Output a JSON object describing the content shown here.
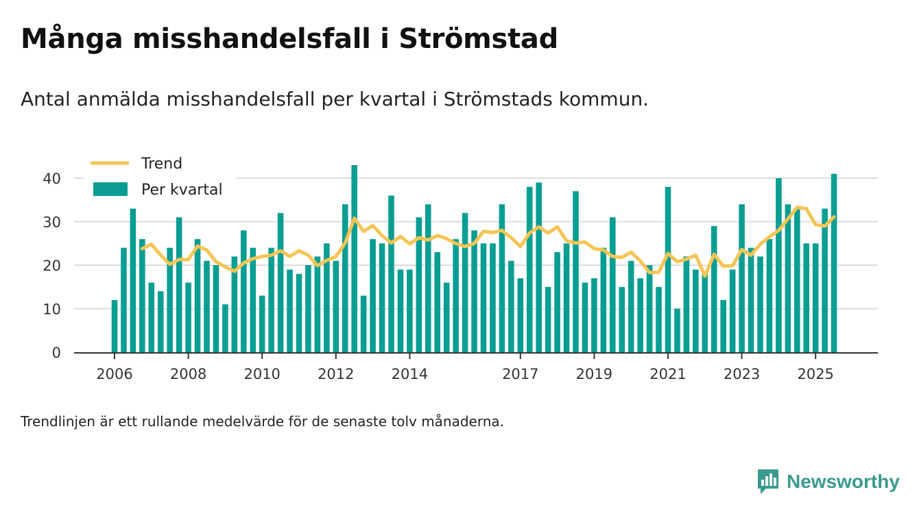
{
  "header": {
    "title": "Många misshandelsfall i Strömstad",
    "subtitle": "Antal anmälda misshandelsfall per kvartal i Strömstads kommun."
  },
  "footnote": "Trendlinjen är ett rullande medelvärde för de senaste tolv månaderna.",
  "brand": {
    "name": "Newsworthy",
    "icon": "newsworthy-logo-icon",
    "color": "#3a9a8e"
  },
  "chart_data": {
    "type": "bar",
    "title": "Många misshandelsfall i Strömstad",
    "xlabel": "",
    "ylabel": "",
    "ylim": [
      0,
      45
    ],
    "yticks": [
      0,
      10,
      20,
      30,
      40
    ],
    "grid": true,
    "legend_position": "top-left",
    "x_tick_labels": [
      {
        "label": "2006",
        "index": 0
      },
      {
        "label": "2008",
        "index": 8
      },
      {
        "label": "2010",
        "index": 16
      },
      {
        "label": "2012",
        "index": 24
      },
      {
        "label": "2014",
        "index": 32
      },
      {
        "label": "2017",
        "index": 44
      },
      {
        "label": "2019",
        "index": 52
      },
      {
        "label": "2021",
        "index": 60
      },
      {
        "label": "2023",
        "index": 68
      },
      {
        "label": "2025",
        "index": 76
      }
    ],
    "series": [
      {
        "name": "Per kvartal",
        "type": "bar",
        "color": "#0a9e93",
        "values": [
          12,
          24,
          33,
          26,
          16,
          14,
          24,
          31,
          16,
          26,
          21,
          20,
          11,
          22,
          28,
          24,
          13,
          24,
          32,
          19,
          18,
          20,
          22,
          25,
          21,
          34,
          43,
          13,
          26,
          25,
          36,
          19,
          19,
          31,
          34,
          23,
          16,
          26,
          32,
          28,
          25,
          25,
          34,
          21,
          17,
          38,
          39,
          15,
          23,
          25,
          37,
          16,
          17,
          24,
          31,
          15,
          21,
          17,
          20,
          15,
          38,
          10,
          22,
          19,
          18,
          29,
          12,
          19,
          34,
          24,
          22,
          26,
          40,
          34,
          33,
          25,
          25,
          33,
          41
        ]
      },
      {
        "name": "Trend",
        "type": "line",
        "color": "#f5c555",
        "start_index": 3,
        "values": [
          23.8,
          24.8,
          22.3,
          20.2,
          21.3,
          21.3,
          24.4,
          23.5,
          20.8,
          19.6,
          18.6,
          20.5,
          21.5,
          22.0,
          22.3,
          23.3,
          22.0,
          23.3,
          22.3,
          19.9,
          21.1,
          22.0,
          25.1,
          30.8,
          27.8,
          29.1,
          26.8,
          25.1,
          26.6,
          24.9,
          26.3,
          25.8,
          26.8,
          26.1,
          25.0,
          24.3,
          25.0,
          27.8,
          27.5,
          28.0,
          26.3,
          24.3,
          27.4,
          28.8,
          27.4,
          28.8,
          25.6,
          25.1,
          25.3,
          23.8,
          23.5,
          22.0,
          21.8,
          23.0,
          21.0,
          18.3,
          18.4,
          22.7,
          20.8,
          21.4,
          22.3,
          17.5,
          22.5,
          19.8,
          19.9,
          23.6,
          22.3,
          24.8,
          26.5,
          28.0,
          30.6,
          33.3,
          33.0,
          29.3,
          29.0,
          31.1
        ]
      }
    ]
  }
}
